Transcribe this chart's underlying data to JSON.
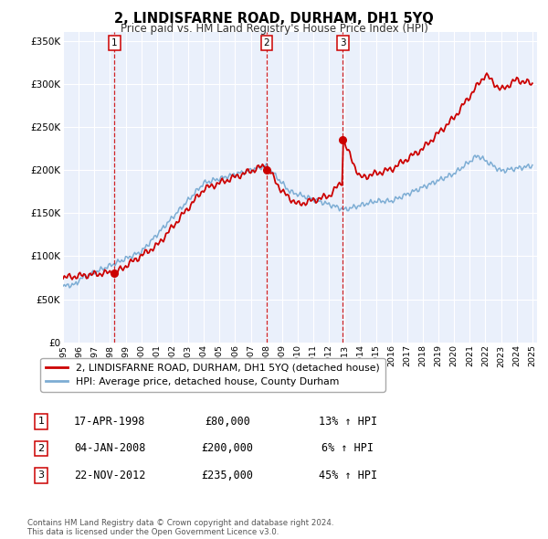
{
  "title": "2, LINDISFARNE ROAD, DURHAM, DH1 5YQ",
  "subtitle": "Price paid vs. HM Land Registry's House Price Index (HPI)",
  "red_line_label": "2, LINDISFARNE ROAD, DURHAM, DH1 5YQ (detached house)",
  "blue_line_label": "HPI: Average price, detached house, County Durham",
  "transactions": [
    {
      "num": 1,
      "date": "17-APR-1998",
      "price": 80000,
      "hpi_diff": "13% ↑ HPI",
      "year": 1998.29
    },
    {
      "num": 2,
      "date": "04-JAN-2008",
      "price": 200000,
      "hpi_diff": "6% ↑ HPI",
      "year": 2008.01
    },
    {
      "num": 3,
      "date": "22-NOV-2012",
      "price": 235000,
      "hpi_diff": "45% ↑ HPI",
      "year": 2012.89
    }
  ],
  "ylim": [
    0,
    360000
  ],
  "yticks": [
    0,
    50000,
    100000,
    150000,
    200000,
    250000,
    300000,
    350000
  ],
  "ytick_labels": [
    "£0",
    "£50K",
    "£100K",
    "£150K",
    "£200K",
    "£250K",
    "£300K",
    "£350K"
  ],
  "footer": "Contains HM Land Registry data © Crown copyright and database right 2024.\nThis data is licensed under the Open Government Licence v3.0.",
  "plot_bg": "#eaf0fb",
  "fig_bg": "#ffffff",
  "grid_color": "#ffffff",
  "red_color": "#cc0000",
  "blue_color": "#7dadd4"
}
